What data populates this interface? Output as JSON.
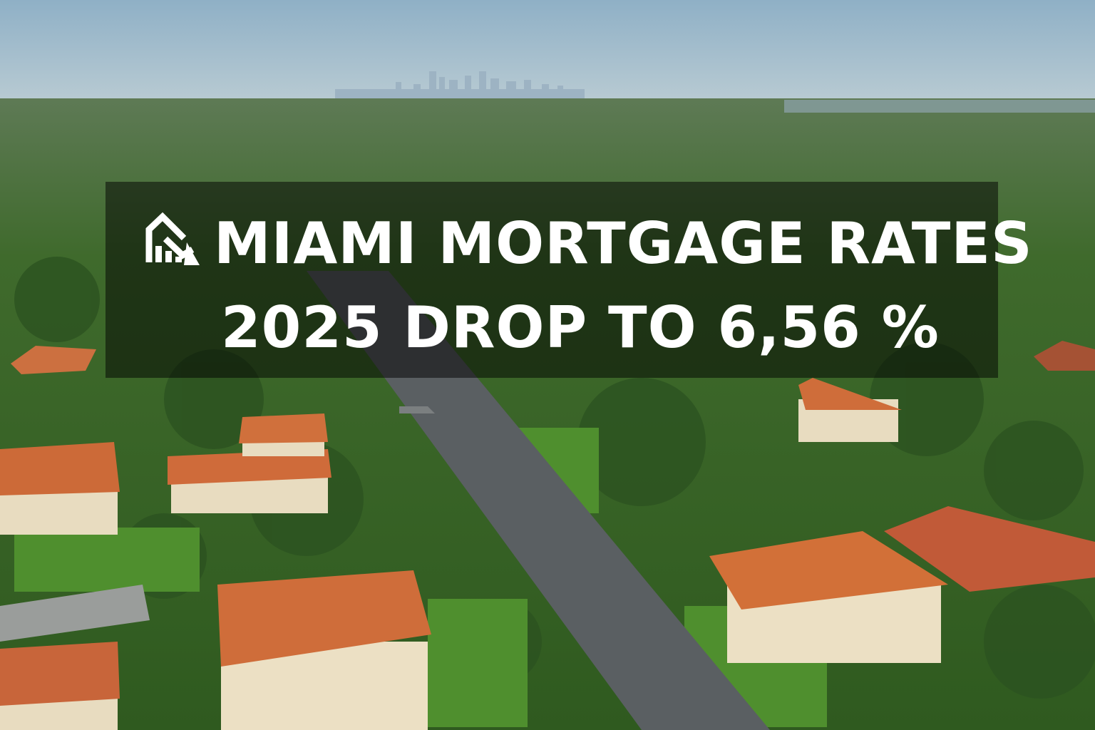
{
  "headline": {
    "line1": "MIAMI MORTGAGE RATES",
    "line2": "2025 DROP TO 6,56 %"
  }
}
